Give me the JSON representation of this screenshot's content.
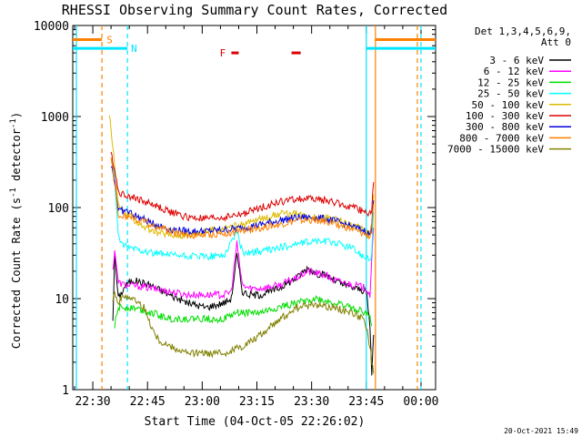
{
  "chart_data": {
    "type": "line",
    "title": "RHESSI Observing Summary Count Rates, Corrected",
    "xlabel": "Start Time (04-Oct-05 22:26:02)",
    "ylabel": "Corrected Count Rate (s⁻¹ detector⁻¹)",
    "ylabel_base": "Corrected Count Rate (s",
    "ylabel_mid": " detector",
    "ylabel_end": ")",
    "ylabel_exp": "-1",
    "yscale": "log",
    "ylim": [
      1,
      10000
    ],
    "xlim_minutes_after_2226": [
      -1.5,
      98
    ],
    "x_ticks": [
      {
        "label": "22:30",
        "min": 4
      },
      {
        "label": "22:45",
        "min": 19
      },
      {
        "label": "23:00",
        "min": 34
      },
      {
        "label": "23:15",
        "min": 49
      },
      {
        "label": "23:30",
        "min": 64
      },
      {
        "label": "23:45",
        "min": 79
      },
      {
        "label": "00:00",
        "min": 94
      }
    ],
    "y_ticks": [
      {
        "label": "1",
        "value": 1
      },
      {
        "label": "10",
        "value": 10
      },
      {
        "label": "100",
        "value": 100
      },
      {
        "label": "1000",
        "value": 1000
      },
      {
        "label": "10000",
        "value": 10000
      }
    ],
    "legend_header": [
      "Det 1,3,4,5,6,9,",
      "Att 0"
    ],
    "legend_position": "right",
    "series": [
      {
        "name": "3 - 6 keV",
        "color": "#000000",
        "x": [
          9.5,
          10,
          11,
          13,
          15,
          20,
          25,
          30,
          35,
          40,
          42,
          43.5,
          45,
          47,
          50,
          55,
          60,
          63,
          65,
          68,
          70,
          73,
          76,
          79,
          80,
          80.5,
          81
        ],
        "y": [
          6,
          30,
          10,
          14,
          16,
          14,
          11,
          9,
          8,
          9,
          10,
          30,
          12,
          11,
          11,
          13,
          17,
          22,
          19,
          18,
          16,
          14,
          13,
          12,
          5,
          1.5,
          4
        ]
      },
      {
        "name": "6 - 12 keV",
        "color": "#ff00ff",
        "x": [
          9.5,
          10,
          11,
          13,
          15,
          20,
          25,
          30,
          35,
          40,
          42,
          43.5,
          45,
          47,
          50,
          55,
          60,
          63,
          65,
          68,
          70,
          73,
          76,
          79,
          80,
          80.5,
          81
        ],
        "y": [
          20,
          35,
          15,
          14,
          14,
          13,
          12,
          11,
          11,
          11,
          12,
          40,
          14,
          13,
          13,
          14,
          17,
          20,
          19,
          18,
          16,
          15,
          14,
          13,
          11,
          25,
          60
        ]
      },
      {
        "name": "12 - 25 keV",
        "color": "#00dd00",
        "x": [
          10,
          11,
          13,
          15,
          20,
          25,
          30,
          35,
          40,
          43.5,
          45,
          50,
          55,
          60,
          65,
          70,
          75,
          79,
          80,
          80.5
        ],
        "y": [
          5,
          8,
          8,
          8,
          7,
          6,
          6,
          6,
          6,
          7,
          7,
          7,
          8,
          9,
          10,
          9,
          8,
          7,
          6,
          5
        ]
      },
      {
        "name": "25 - 50 keV",
        "color": "#00ffff",
        "x": [
          9.5,
          10,
          11,
          12,
          15,
          20,
          25,
          30,
          35,
          40,
          43.5,
          45,
          50,
          55,
          60,
          65,
          70,
          75,
          79,
          80,
          80.5,
          81
        ],
        "y": [
          300,
          200,
          50,
          38,
          36,
          32,
          30,
          29,
          29,
          30,
          55,
          32,
          33,
          36,
          40,
          43,
          42,
          36,
          28,
          26,
          32,
          90
        ]
      },
      {
        "name": "50 - 100 keV",
        "color": "#ddbb00",
        "x": [
          8.5,
          9,
          10,
          11,
          12,
          14,
          16,
          20,
          25,
          30,
          35,
          40,
          45,
          50,
          55,
          60,
          65,
          70,
          75,
          79,
          80,
          80.5,
          81
        ],
        "y": [
          1100,
          700,
          300,
          110,
          90,
          80,
          70,
          55,
          50,
          50,
          55,
          60,
          65,
          75,
          85,
          85,
          80,
          75,
          65,
          55,
          50,
          70,
          140
        ]
      },
      {
        "name": "100 - 300 keV",
        "color": "#dd0000",
        "x": [
          9,
          10,
          11,
          12,
          14,
          16,
          20,
          25,
          30,
          35,
          40,
          45,
          50,
          55,
          60,
          65,
          70,
          75,
          79,
          80,
          80.5,
          81
        ],
        "y": [
          400,
          260,
          150,
          140,
          135,
          125,
          110,
          90,
          78,
          75,
          78,
          85,
          100,
          115,
          125,
          125,
          115,
          100,
          90,
          85,
          100,
          190
        ]
      },
      {
        "name": "300 - 800 keV",
        "color": "#0000dd",
        "x": [
          9,
          10,
          11,
          12,
          14,
          16,
          20,
          25,
          30,
          35,
          40,
          45,
          50,
          55,
          60,
          65,
          70,
          75,
          79,
          80,
          80.5,
          81
        ],
        "y": [
          300,
          200,
          95,
          92,
          90,
          80,
          68,
          58,
          55,
          55,
          57,
          60,
          65,
          72,
          78,
          78,
          72,
          62,
          55,
          50,
          60,
          120
        ]
      },
      {
        "name": "800 - 7000 keV",
        "color": "#ff8000",
        "x": [
          9,
          10,
          11,
          12,
          14,
          16,
          20,
          25,
          30,
          35,
          40,
          45,
          50,
          55,
          60,
          65,
          70,
          75,
          79,
          80,
          80.5,
          81
        ],
        "y": [
          350,
          180,
          85,
          82,
          80,
          75,
          65,
          55,
          50,
          50,
          52,
          55,
          60,
          65,
          72,
          73,
          68,
          58,
          50,
          48,
          55,
          110
        ]
      },
      {
        "name": "7000 - 15000 keV",
        "color": "#808000",
        "x": [
          9.5,
          10,
          11,
          13,
          15,
          18,
          20,
          22,
          25,
          30,
          35,
          40,
          45,
          50,
          53,
          55,
          58,
          60,
          65,
          70,
          75,
          78,
          79,
          80,
          80.5,
          81
        ],
        "y": [
          10,
          12,
          9,
          11,
          10,
          8,
          5,
          3.5,
          3,
          2.5,
          2.5,
          2.5,
          3,
          4,
          5,
          6,
          7,
          8,
          8.5,
          8,
          7,
          6,
          5,
          3,
          2,
          1.5
        ]
      }
    ],
    "state_bars": [
      {
        "label": "S",
        "color": "#ff8000",
        "x_min": [
          -1.5,
          6.5,
          81.5,
          98
        ],
        "value": 7000,
        "label_min": 7.8
      },
      {
        "label": "N",
        "color": "#00e5ff",
        "x_min": [
          -1.5,
          13.5,
          79,
          98
        ],
        "value": 5600,
        "label_min": 14.5
      },
      {
        "label": "F",
        "color": "#dd0000",
        "x_min": [
          42,
          44,
          58.5,
          61
        ],
        "value": 5000,
        "label_min": 38.8
      }
    ],
    "vertical_lines": [
      {
        "min": -0.5,
        "color": "#00e5ff",
        "style": "solid"
      },
      {
        "min": 6.5,
        "color": "#ff8000",
        "style": "dashed"
      },
      {
        "min": 13.5,
        "color": "#00e5ff",
        "style": "dashed"
      },
      {
        "min": 79,
        "color": "#00e5ff",
        "style": "solid"
      },
      {
        "min": 81.5,
        "color": "#ff8000",
        "style": "solid"
      },
      {
        "min": 93,
        "color": "#ff8000",
        "style": "dashed"
      },
      {
        "min": 94,
        "color": "#00e5ff",
        "style": "dashed"
      }
    ],
    "footer_date": "20-Oct-2021 15:49"
  }
}
